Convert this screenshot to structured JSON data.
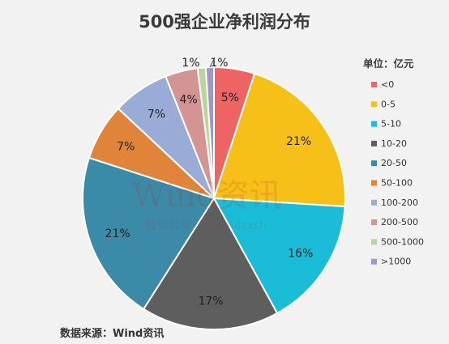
{
  "chart_data": {
    "type": "pie",
    "title": "500强企业净利润分布",
    "unit_label": "单位：亿元",
    "source": "数据来源：Wind资讯",
    "watermark": {
      "main": "Wind资讯",
      "sub": "微信公众号：windzxsh"
    },
    "slices": [
      {
        "label": "<0",
        "value": 5,
        "display": "5%",
        "color": "#ee6464"
      },
      {
        "label": "0-5",
        "value": 21,
        "display": "21%",
        "color": "#f7c018"
      },
      {
        "label": "5-10",
        "value": 16,
        "display": "16%",
        "color": "#1bbcd8"
      },
      {
        "label": "10-20",
        "value": 17,
        "display": "17%",
        "color": "#5e5e5e"
      },
      {
        "label": "20-50",
        "value": 21,
        "display": "21%",
        "color": "#3b8aa8"
      },
      {
        "label": "50-100",
        "value": 7,
        "display": "7%",
        "color": "#e0843a"
      },
      {
        "label": "100-200",
        "value": 7,
        "display": "7%",
        "color": "#9aacd6"
      },
      {
        "label": "200-500",
        "value": 4,
        "display": "4%",
        "color": "#d49494"
      },
      {
        "label": "500-1000",
        "value": 1,
        "display": "1%",
        "color": "#b9d69a"
      },
      {
        "label": ">1000",
        "value": 1,
        "display": "1%",
        "color": "#9e97c8"
      }
    ]
  }
}
